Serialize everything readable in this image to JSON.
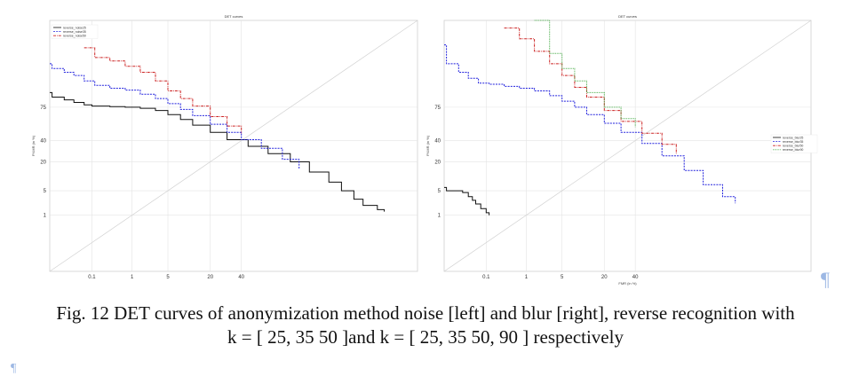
{
  "caption": {
    "line1": "Fig. 12 DET curves of anonymization method noise [left] and blur [right], reverse recognition with",
    "line2": "k = [ 25, 35 50 ]and k = [ 25, 35 50, 90 ] respectively",
    "pilcrow": "¶"
  },
  "chart_data": [
    {
      "type": "line",
      "title": "DET curves",
      "xlabel": "FMR (in %)",
      "ylabel": "FNMR (in %)",
      "x_ticks": [
        "0.1",
        "1",
        "5",
        "20",
        "40"
      ],
      "y_ticks": [
        "1",
        "5",
        "20",
        "40",
        "75"
      ],
      "grid": true,
      "legend_position": "top-left",
      "diagonal": true,
      "series": [
        {
          "name": "reverse_noise25",
          "color": "#111111",
          "style": "solid",
          "points": [
            [
              0.005,
              86
            ],
            [
              0.006,
              83
            ],
            [
              0.015,
              81
            ],
            [
              0.03,
              79
            ],
            [
              0.06,
              77
            ],
            [
              0.1,
              76
            ],
            [
              0.3,
              75.5
            ],
            [
              0.7,
              75
            ],
            [
              1.5,
              74
            ],
            [
              3,
              72
            ],
            [
              5,
              68
            ],
            [
              8,
              63
            ],
            [
              12,
              57
            ],
            [
              20,
              49
            ],
            [
              30,
              41
            ],
            [
              45,
              34
            ],
            [
              60,
              27
            ],
            [
              75,
              20
            ],
            [
              85,
              13
            ],
            [
              92,
              8
            ],
            [
              95,
              5
            ],
            [
              97,
              3
            ],
            [
              98,
              2
            ],
            [
              99,
              1.5
            ],
            [
              99.3,
              1.3
            ]
          ]
        },
        {
          "name": "reverse_noise35",
          "color": "#2222dd",
          "style": "dashed",
          "points": [
            [
              0.005,
              97
            ],
            [
              0.006,
              96
            ],
            [
              0.015,
              95
            ],
            [
              0.03,
              94
            ],
            [
              0.06,
              92
            ],
            [
              0.12,
              90
            ],
            [
              0.3,
              88.5
            ],
            [
              0.7,
              87.5
            ],
            [
              1.5,
              85
            ],
            [
              3,
              82
            ],
            [
              5,
              78
            ],
            [
              8,
              73
            ],
            [
              12,
              67
            ],
            [
              20,
              58
            ],
            [
              30,
              49
            ],
            [
              40,
              41
            ],
            [
              55,
              32
            ],
            [
              70,
              22
            ],
            [
              80,
              15
            ]
          ]
        },
        {
          "name": "reverse_noise50",
          "color": "#cc2222",
          "style": "dashdot",
          "points": [
            [
              0.06,
              99
            ],
            [
              0.12,
              98
            ],
            [
              0.3,
              97.5
            ],
            [
              0.7,
              96.5
            ],
            [
              1.5,
              95
            ],
            [
              3,
              92
            ],
            [
              5,
              87
            ],
            [
              8,
              82
            ],
            [
              12,
              76
            ],
            [
              20,
              66
            ],
            [
              30,
              56
            ],
            [
              40,
              48
            ]
          ]
        }
      ]
    },
    {
      "type": "line",
      "title": "DET curves",
      "xlabel": "FMR (in %)",
      "ylabel": "FNMR (in %)",
      "x_ticks": [
        "0.1",
        "1",
        "5",
        "20",
        "40"
      ],
      "y_ticks": [
        "1",
        "5",
        "20",
        "40",
        "75"
      ],
      "grid": true,
      "legend_position": "center-right",
      "diagonal": true,
      "series": [
        {
          "name": "reverse_blur25",
          "color": "#111111",
          "style": "solid",
          "points": [
            [
              0.005,
              6
            ],
            [
              0.006,
              5
            ],
            [
              0.015,
              5
            ],
            [
              0.02,
              4.5
            ],
            [
              0.03,
              3.5
            ],
            [
              0.04,
              2.8
            ],
            [
              0.05,
              2.2
            ],
            [
              0.07,
              1.6
            ],
            [
              0.1,
              1.2
            ],
            [
              0.12,
              1.0
            ]
          ]
        },
        {
          "name": "reverse_blur35",
          "color": "#2222dd",
          "style": "dashed",
          "points": [
            [
              0.005,
              99.2
            ],
            [
              0.006,
              97
            ],
            [
              0.015,
              95
            ],
            [
              0.03,
              93
            ],
            [
              0.06,
              91
            ],
            [
              0.12,
              90.5
            ],
            [
              0.3,
              89.5
            ],
            [
              0.7,
              88.5
            ],
            [
              1.5,
              87
            ],
            [
              3,
              84
            ],
            [
              5,
              80
            ],
            [
              8,
              75
            ],
            [
              12,
              68
            ],
            [
              20,
              59
            ],
            [
              30,
              49
            ],
            [
              45,
              37
            ],
            [
              60,
              25
            ],
            [
              75,
              14
            ],
            [
              85,
              7
            ],
            [
              92,
              3.5
            ],
            [
              95,
              2.3
            ]
          ]
        },
        {
          "name": "reverse_blur50",
          "color": "#cc2222",
          "style": "dashdot",
          "points": [
            [
              0.3,
              99.8
            ],
            [
              0.7,
              99.5
            ],
            [
              1.5,
              98.7
            ],
            [
              3,
              97
            ],
            [
              5,
              94
            ],
            [
              8,
              89
            ],
            [
              12,
              83
            ],
            [
              20,
              72
            ],
            [
              30,
              61
            ],
            [
              45,
              48
            ],
            [
              60,
              36
            ],
            [
              70,
              27
            ]
          ]
        },
        {
          "name": "reverse_blur90",
          "color": "#44aa44",
          "style": "dotted",
          "points": [
            [
              1.5,
              99.9
            ],
            [
              3,
              98.5
            ],
            [
              5,
              96
            ],
            [
              8,
              92
            ],
            [
              12,
              86
            ],
            [
              20,
              75
            ],
            [
              30,
              64
            ],
            [
              40,
              55
            ]
          ]
        }
      ]
    }
  ]
}
